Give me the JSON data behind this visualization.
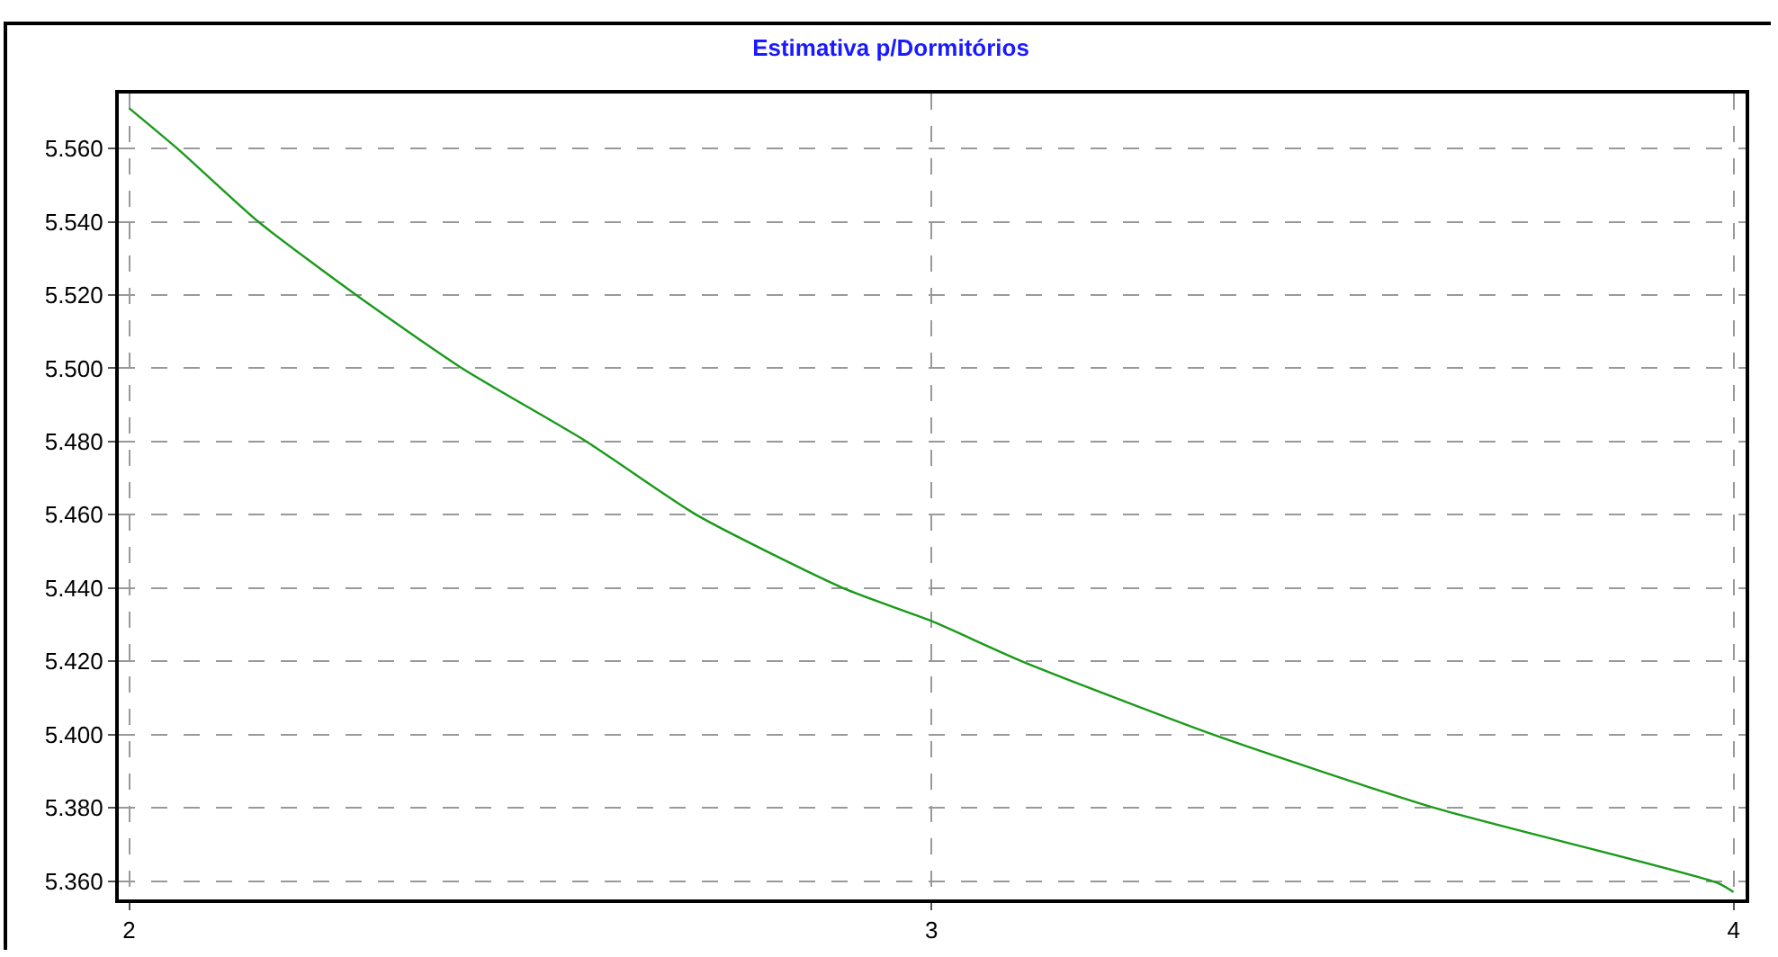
{
  "chart_data": {
    "type": "line",
    "title": "Estimativa p/Dormitórios",
    "x": [
      2,
      2.06,
      2.161,
      2.283,
      2.415,
      2.57,
      2.707,
      2.89,
      3,
      3.113,
      3.351,
      3.627,
      3.98,
      4
    ],
    "series": [
      {
        "color": "#1a9a1a",
        "values": [
          5.571,
          5.56,
          5.54,
          5.52,
          5.5,
          5.48,
          5.46,
          5.44,
          5.431,
          5.42,
          5.4,
          5.38,
          5.3595,
          5.357
        ]
      }
    ],
    "xlim": [
      1.987,
      4.015
    ],
    "xticks": [
      2,
      3,
      4
    ],
    "ylim": [
      5.355,
      5.575
    ],
    "yticks": [
      {
        "value": 5.36,
        "label": "5.360"
      },
      {
        "value": 5.38,
        "label": "5.380"
      },
      {
        "value": 5.4,
        "label": "5.400"
      },
      {
        "value": 5.42,
        "label": "5.420"
      },
      {
        "value": 5.44,
        "label": "5.440"
      },
      {
        "value": 5.46,
        "label": "5.460"
      },
      {
        "value": 5.48,
        "label": "5.480"
      },
      {
        "value": 5.5,
        "label": "5.500"
      },
      {
        "value": 5.52,
        "label": "5.520"
      },
      {
        "value": 5.54,
        "label": "5.540"
      },
      {
        "value": 5.56,
        "label": "5.560"
      }
    ],
    "grid": true,
    "marker": "none",
    "line_style": "solid"
  }
}
